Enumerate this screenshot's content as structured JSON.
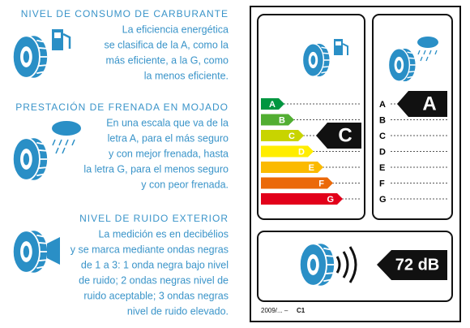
{
  "sections": [
    {
      "title": "NIVEL DE CONSUMO DE CARBURANTE",
      "lines": [
        "La eficiencia energética",
        "se clasifica de la A, como la",
        "más eficiente, a la G, como",
        "la menos eficiente."
      ]
    },
    {
      "title": "PRESTACIÓN DE FRENADA EN MOJADO",
      "lines": [
        "En una escala que va de la",
        "letra A, para el más seguro",
        "y con mejor frenada, hasta",
        "la letra G, para el menos seguro",
        "y con peor frenada."
      ]
    },
    {
      "title": "NIVEL DE RUIDO EXTERIOR",
      "lines": [
        "La medición es en decibélios",
        "y se marca mediante ondas negras",
        "de 1 a 3: 1 onda negra bajo nivel",
        "de ruido; 2 ondas negras nivel de",
        "ruido aceptable; 3 ondas negras",
        "nivel de ruido elevado."
      ]
    }
  ],
  "label": {
    "fuel": {
      "grades": [
        "A",
        "B",
        "C",
        "D",
        "E",
        "F",
        "G"
      ],
      "rating": "C"
    },
    "wet": {
      "grades": [
        "A",
        "B",
        "C",
        "D",
        "E",
        "F",
        "G"
      ],
      "rating": "A"
    },
    "noise": {
      "value": "72 dB"
    },
    "footer": {
      "code": "2009/... –",
      "class": "C1"
    }
  }
}
